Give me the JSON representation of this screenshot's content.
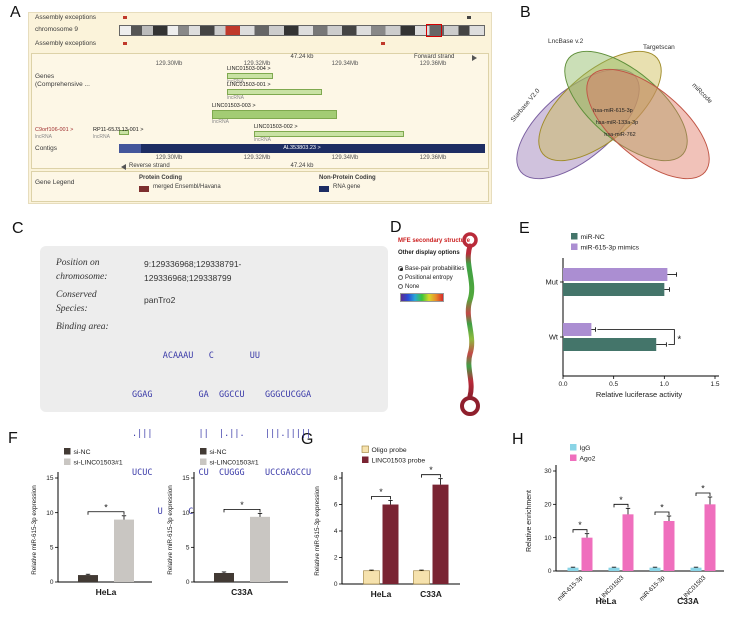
{
  "panel_labels": [
    "A",
    "B",
    "C",
    "D",
    "E",
    "F",
    "G",
    "H"
  ],
  "genome_browser": {
    "labels": {
      "assembly_top": "Assembly exceptions",
      "chromosome": "chromosome 9",
      "assembly_bottom": "Assembly exceptions",
      "genes_line1": "Genes",
      "genes_line2": "(Comprehensive ...",
      "contigs": "Contigs",
      "gene_legend": "Gene Legend"
    },
    "scale_top": "47.24 kb",
    "scale_bottom": "47.24 kb",
    "forward_strand": "Forward strand",
    "reverse_strand": "Reverse strand",
    "ruler_top": [
      "129.30Mb",
      "129.32Mb",
      "129.34Mb",
      "129.36Mb"
    ],
    "ruler_bottom": [
      "129.30Mb",
      "129.32Mb",
      "129.34Mb",
      "129.36Mb"
    ],
    "genes": [
      {
        "label": "LINC01503-004 >",
        "biotype": "lncRNA"
      },
      {
        "label": "LINC01503-001 >",
        "biotype": "lncRNA"
      },
      {
        "label": "LINC01503-003 >",
        "biotype": "lncRNA"
      },
      {
        "label": "LINC01503-002 >",
        "biotype": "lncRNA"
      },
      {
        "label": "C9orf106-001 >",
        "biotype": "lncRNA"
      },
      {
        "label": "RP11-65J3.13-001 >",
        "biotype": "lncRNA"
      }
    ],
    "contig_name": "AL353803.23 >",
    "legend": {
      "protein_coding_title": "Protein Coding",
      "protein_coding_item": "merged Ensembl/Havana",
      "protein_coding_color": "#7d2f2f",
      "non_protein_coding_title": "Non-Protein Coding",
      "non_protein_coding_item": "RNA gene",
      "non_protein_coding_color": "#1d2d63"
    }
  },
  "venn": {
    "sets": [
      {
        "name": "LncBase v.2",
        "fill": "rgba(204,186,80,0.45)",
        "edge": "#a08c2a"
      },
      {
        "name": "Targetscan",
        "fill": "rgba(140,185,95,0.45)",
        "edge": "#5f8f3a"
      },
      {
        "name": "Starbase V2.0",
        "fill": "rgba(150,120,180,0.45)",
        "edge": "#7a5fa0"
      },
      {
        "name": "miRcode",
        "fill": "rgba(225,120,100,0.45)",
        "edge": "#c05545"
      }
    ],
    "center_items": [
      "hsa-miR-615-3p",
      "hsa-miR-133a-3p",
      "hsa-miR-762"
    ]
  },
  "binding_info": {
    "position_label_1": "Position on",
    "position_label_2": "chromosome:",
    "position_value_1": "9:129336968;129338791-",
    "position_value_2": "129336968;129338799",
    "conserved_label_1": "Conserved",
    "conserved_label_2": "Species:",
    "conserved_value": "panTro2",
    "binding_label": "Binding area:",
    "alignment": [
      "      ACAAAU   C       UU",
      "GGAG         GA  GGCCU    GGGCUCGGA",
      ".|||         ||  |.||.    |||.|||||",
      "UCUC         CU  CUGGG    UCCGAGCCU",
      "     U     C"
    ]
  },
  "rna_structure": {
    "title": "MFE secondary structure",
    "options_title": "Other display options",
    "options": [
      "Base-pair probabilities",
      "Positional entropy",
      "None"
    ],
    "selected_option": "Base-pair probabilities"
  },
  "chart_data": [
    {
      "id": "chart-e",
      "type": "bar-horizontal",
      "categories": [
        "Mut",
        "Wt"
      ],
      "series": [
        {
          "name": "miR-NC",
          "color": "#44756a",
          "values": [
            1.0,
            0.92
          ],
          "errors": [
            0.05,
            0.1
          ]
        },
        {
          "name": "miR-615-3p mimics",
          "color": "#ab8ed2",
          "values": [
            1.03,
            0.28
          ],
          "errors": [
            0.09,
            0.04
          ]
        }
      ],
      "xlabel": "Relative luciferase activity",
      "xlim": [
        0,
        1.5
      ],
      "xticks": [
        0,
        0.5,
        1,
        1.5
      ],
      "sig": [
        {
          "category": "Wt",
          "label": "*"
        }
      ]
    },
    {
      "id": "chart-f1",
      "type": "bar",
      "categories": [
        "HeLa"
      ],
      "series": [
        {
          "name": "si-NC",
          "color": "#423a34",
          "values": [
            1.0
          ],
          "errors": [
            0.12
          ]
        },
        {
          "name": "si-LINC01503#1",
          "color": "#c9c6c2",
          "values": [
            9.0
          ],
          "errors": [
            0.55
          ]
        }
      ],
      "ylabel": "Relative miR-615-3p expression",
      "ylim": [
        0,
        15
      ],
      "yticks": [
        0,
        5,
        10,
        15
      ],
      "sig": [
        {
          "group": 0,
          "label": "*"
        }
      ]
    },
    {
      "id": "chart-f2",
      "type": "bar",
      "categories": [
        "C33A"
      ],
      "series": [
        {
          "name": "si-NC",
          "color": "#423a34",
          "values": [
            1.3
          ],
          "errors": [
            0.15
          ]
        },
        {
          "name": "si-LINC01503#1",
          "color": "#c9c6c2",
          "values": [
            9.4
          ],
          "errors": [
            0.5
          ]
        }
      ],
      "ylabel": "Relative miR-615-3p expression",
      "ylim": [
        0,
        15
      ],
      "yticks": [
        0,
        5,
        10,
        15
      ],
      "sig": [
        {
          "group": 0,
          "label": "*"
        }
      ]
    },
    {
      "id": "chart-g",
      "type": "bar",
      "categories": [
        "HeLa",
        "C33A"
      ],
      "series": [
        {
          "name": "Oligo probe",
          "color": "#f6e2ad",
          "stroke": "#9a7c33",
          "values": [
            1.0,
            1.0
          ],
          "errors": [
            0.05,
            0.05
          ]
        },
        {
          "name": "LINC01503 probe",
          "color": "#7a2433",
          "values": [
            6.0,
            7.5
          ],
          "errors": [
            0.3,
            0.45
          ]
        }
      ],
      "ylabel": "Relative miR-615-3p expression",
      "ylim": [
        0,
        8
      ],
      "yticks": [
        0,
        2,
        4,
        6,
        8
      ],
      "sig": [
        {
          "group": 0,
          "label": "*"
        },
        {
          "group": 1,
          "label": "*"
        }
      ]
    },
    {
      "id": "chart-h",
      "type": "bar",
      "categories": [
        "miR-615-3p",
        "LINC01503",
        "miR-615-3p",
        "LINC01503"
      ],
      "group_labels": [
        "HeLa",
        "C33A"
      ],
      "series": [
        {
          "name": "IgG",
          "color": "#8ad4e6",
          "values": [
            1,
            1,
            1,
            1
          ],
          "errors": [
            0.15,
            0.15,
            0.15,
            0.15
          ]
        },
        {
          "name": "Ago2",
          "color": "#ef6fbd",
          "values": [
            10,
            17,
            15,
            20
          ],
          "errors": [
            1.2,
            1.8,
            1.5,
            2.2
          ]
        }
      ],
      "ylabel": "Relative enrichment",
      "ylim": [
        0,
        30
      ],
      "yticks": [
        0,
        10,
        20,
        30
      ],
      "sig": [
        {
          "group": 0,
          "label": "*"
        },
        {
          "group": 1,
          "label": "*"
        },
        {
          "group": 2,
          "label": "*"
        },
        {
          "group": 3,
          "label": "*"
        }
      ]
    }
  ]
}
